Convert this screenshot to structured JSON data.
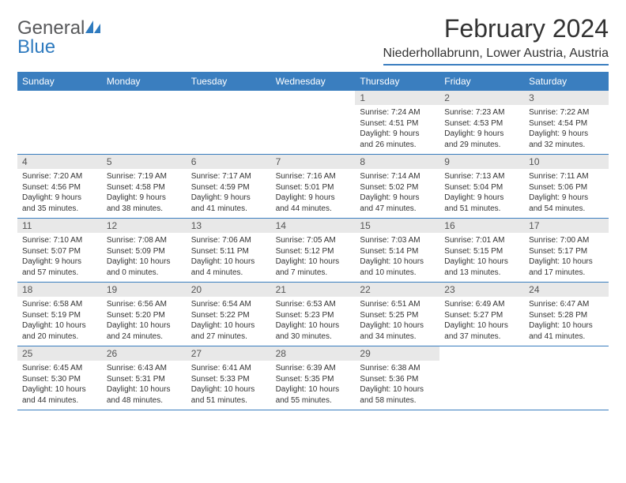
{
  "logo": {
    "word1": "General",
    "word2": "Blue",
    "word1_color": "#58595b",
    "word2_color": "#2f7bbf",
    "sail_color": "#2f7bbf"
  },
  "header": {
    "title": "February 2024",
    "location": "Niederhollabrunn, Lower Austria, Austria"
  },
  "colors": {
    "header_bar": "#3a7ebf",
    "daynum_bg": "#e8e8e8",
    "text": "#333333",
    "border": "#3a7ebf"
  },
  "weekdays": [
    "Sunday",
    "Monday",
    "Tuesday",
    "Wednesday",
    "Thursday",
    "Friday",
    "Saturday"
  ],
  "first_day_index": 4,
  "days": [
    {
      "num": "1",
      "sunrise": "7:24 AM",
      "sunset": "4:51 PM",
      "daylight_a": "Daylight: 9 hours",
      "daylight_b": "and 26 minutes."
    },
    {
      "num": "2",
      "sunrise": "7:23 AM",
      "sunset": "4:53 PM",
      "daylight_a": "Daylight: 9 hours",
      "daylight_b": "and 29 minutes."
    },
    {
      "num": "3",
      "sunrise": "7:22 AM",
      "sunset": "4:54 PM",
      "daylight_a": "Daylight: 9 hours",
      "daylight_b": "and 32 minutes."
    },
    {
      "num": "4",
      "sunrise": "7:20 AM",
      "sunset": "4:56 PM",
      "daylight_a": "Daylight: 9 hours",
      "daylight_b": "and 35 minutes."
    },
    {
      "num": "5",
      "sunrise": "7:19 AM",
      "sunset": "4:58 PM",
      "daylight_a": "Daylight: 9 hours",
      "daylight_b": "and 38 minutes."
    },
    {
      "num": "6",
      "sunrise": "7:17 AM",
      "sunset": "4:59 PM",
      "daylight_a": "Daylight: 9 hours",
      "daylight_b": "and 41 minutes."
    },
    {
      "num": "7",
      "sunrise": "7:16 AM",
      "sunset": "5:01 PM",
      "daylight_a": "Daylight: 9 hours",
      "daylight_b": "and 44 minutes."
    },
    {
      "num": "8",
      "sunrise": "7:14 AM",
      "sunset": "5:02 PM",
      "daylight_a": "Daylight: 9 hours",
      "daylight_b": "and 47 minutes."
    },
    {
      "num": "9",
      "sunrise": "7:13 AM",
      "sunset": "5:04 PM",
      "daylight_a": "Daylight: 9 hours",
      "daylight_b": "and 51 minutes."
    },
    {
      "num": "10",
      "sunrise": "7:11 AM",
      "sunset": "5:06 PM",
      "daylight_a": "Daylight: 9 hours",
      "daylight_b": "and 54 minutes."
    },
    {
      "num": "11",
      "sunrise": "7:10 AM",
      "sunset": "5:07 PM",
      "daylight_a": "Daylight: 9 hours",
      "daylight_b": "and 57 minutes."
    },
    {
      "num": "12",
      "sunrise": "7:08 AM",
      "sunset": "5:09 PM",
      "daylight_a": "Daylight: 10 hours",
      "daylight_b": "and 0 minutes."
    },
    {
      "num": "13",
      "sunrise": "7:06 AM",
      "sunset": "5:11 PM",
      "daylight_a": "Daylight: 10 hours",
      "daylight_b": "and 4 minutes."
    },
    {
      "num": "14",
      "sunrise": "7:05 AM",
      "sunset": "5:12 PM",
      "daylight_a": "Daylight: 10 hours",
      "daylight_b": "and 7 minutes."
    },
    {
      "num": "15",
      "sunrise": "7:03 AM",
      "sunset": "5:14 PM",
      "daylight_a": "Daylight: 10 hours",
      "daylight_b": "and 10 minutes."
    },
    {
      "num": "16",
      "sunrise": "7:01 AM",
      "sunset": "5:15 PM",
      "daylight_a": "Daylight: 10 hours",
      "daylight_b": "and 13 minutes."
    },
    {
      "num": "17",
      "sunrise": "7:00 AM",
      "sunset": "5:17 PM",
      "daylight_a": "Daylight: 10 hours",
      "daylight_b": "and 17 minutes."
    },
    {
      "num": "18",
      "sunrise": "6:58 AM",
      "sunset": "5:19 PM",
      "daylight_a": "Daylight: 10 hours",
      "daylight_b": "and 20 minutes."
    },
    {
      "num": "19",
      "sunrise": "6:56 AM",
      "sunset": "5:20 PM",
      "daylight_a": "Daylight: 10 hours",
      "daylight_b": "and 24 minutes."
    },
    {
      "num": "20",
      "sunrise": "6:54 AM",
      "sunset": "5:22 PM",
      "daylight_a": "Daylight: 10 hours",
      "daylight_b": "and 27 minutes."
    },
    {
      "num": "21",
      "sunrise": "6:53 AM",
      "sunset": "5:23 PM",
      "daylight_a": "Daylight: 10 hours",
      "daylight_b": "and 30 minutes."
    },
    {
      "num": "22",
      "sunrise": "6:51 AM",
      "sunset": "5:25 PM",
      "daylight_a": "Daylight: 10 hours",
      "daylight_b": "and 34 minutes."
    },
    {
      "num": "23",
      "sunrise": "6:49 AM",
      "sunset": "5:27 PM",
      "daylight_a": "Daylight: 10 hours",
      "daylight_b": "and 37 minutes."
    },
    {
      "num": "24",
      "sunrise": "6:47 AM",
      "sunset": "5:28 PM",
      "daylight_a": "Daylight: 10 hours",
      "daylight_b": "and 41 minutes."
    },
    {
      "num": "25",
      "sunrise": "6:45 AM",
      "sunset": "5:30 PM",
      "daylight_a": "Daylight: 10 hours",
      "daylight_b": "and 44 minutes."
    },
    {
      "num": "26",
      "sunrise": "6:43 AM",
      "sunset": "5:31 PM",
      "daylight_a": "Daylight: 10 hours",
      "daylight_b": "and 48 minutes."
    },
    {
      "num": "27",
      "sunrise": "6:41 AM",
      "sunset": "5:33 PM",
      "daylight_a": "Daylight: 10 hours",
      "daylight_b": "and 51 minutes."
    },
    {
      "num": "28",
      "sunrise": "6:39 AM",
      "sunset": "5:35 PM",
      "daylight_a": "Daylight: 10 hours",
      "daylight_b": "and 55 minutes."
    },
    {
      "num": "29",
      "sunrise": "6:38 AM",
      "sunset": "5:36 PM",
      "daylight_a": "Daylight: 10 hours",
      "daylight_b": "and 58 minutes."
    }
  ]
}
